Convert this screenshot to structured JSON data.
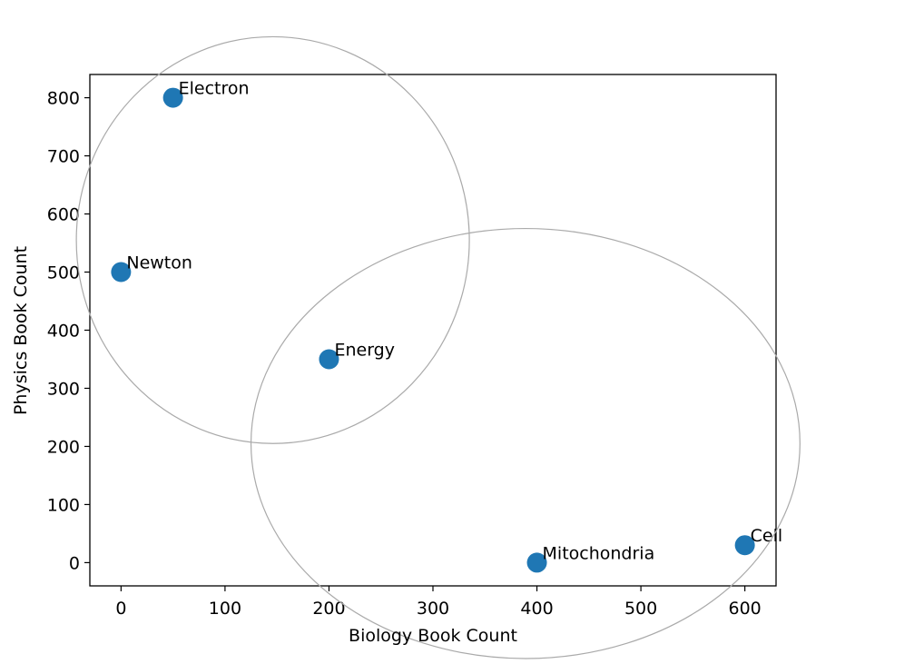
{
  "chart_data": {
    "type": "scatter",
    "xlabel": "Biology Book Count",
    "ylabel": "Physics Book Count",
    "xlim": [
      -30,
      630
    ],
    "ylim": [
      -40,
      840
    ],
    "xticks": [
      0,
      100,
      200,
      300,
      400,
      500,
      600
    ],
    "yticks": [
      0,
      100,
      200,
      300,
      400,
      500,
      600,
      700,
      800
    ],
    "grid": false,
    "marker_color": "#1f77b4",
    "points": [
      {
        "label": "Electron",
        "x": 50,
        "y": 800
      },
      {
        "label": "Newton",
        "x": 0,
        "y": 500
      },
      {
        "label": "Energy",
        "x": 200,
        "y": 350
      },
      {
        "label": "Mitochondria",
        "x": 400,
        "y": 0
      },
      {
        "label": "Cell",
        "x": 600,
        "y": 30
      }
    ],
    "circles": [
      {
        "cx": 146,
        "cy": 555,
        "rx": 189,
        "ry": 350,
        "color": "#aaaaaa"
      },
      {
        "cx": 389,
        "cy": 205,
        "rx": 264,
        "ry": 370,
        "color": "#aaaaaa"
      }
    ]
  }
}
